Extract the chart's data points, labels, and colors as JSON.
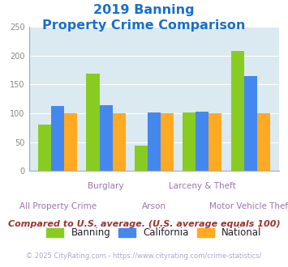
{
  "title_line1": "2019 Banning",
  "title_line2": "Property Crime Comparison",
  "title_color": "#1a6fcc",
  "categories": [
    "All Property Crime",
    "Burglary",
    "Arson",
    "Larceny & Theft",
    "Motor Vehicle Theft"
  ],
  "x_labels_top": [
    "",
    "Burglary",
    "",
    "Larceny & Theft",
    ""
  ],
  "x_labels_bottom": [
    "All Property Crime",
    "",
    "Arson",
    "",
    "Motor Vehicle Theft"
  ],
  "banning": [
    80,
    168,
    44,
    101,
    208
  ],
  "california": [
    112,
    114,
    101,
    103,
    164
  ],
  "national": [
    100,
    100,
    100,
    100,
    100
  ],
  "banning_color": "#88cc22",
  "california_color": "#4488ee",
  "national_color": "#ffaa22",
  "bg_color": "#daeaf0",
  "ylim": [
    0,
    250
  ],
  "yticks": [
    0,
    50,
    100,
    150,
    200,
    250
  ],
  "footer_text": "Compared to U.S. average. (U.S. average equals 100)",
  "footer_color": "#993333",
  "copyright_text": "© 2025 CityRating.com - https://www.cityrating.com/crime-statistics/",
  "copyright_color": "#aaaacc",
  "legend_labels": [
    "Banning",
    "California",
    "National"
  ],
  "legend_text_color": "#222222",
  "xtick_color": "#9977aa",
  "ytick_color": "#888888"
}
